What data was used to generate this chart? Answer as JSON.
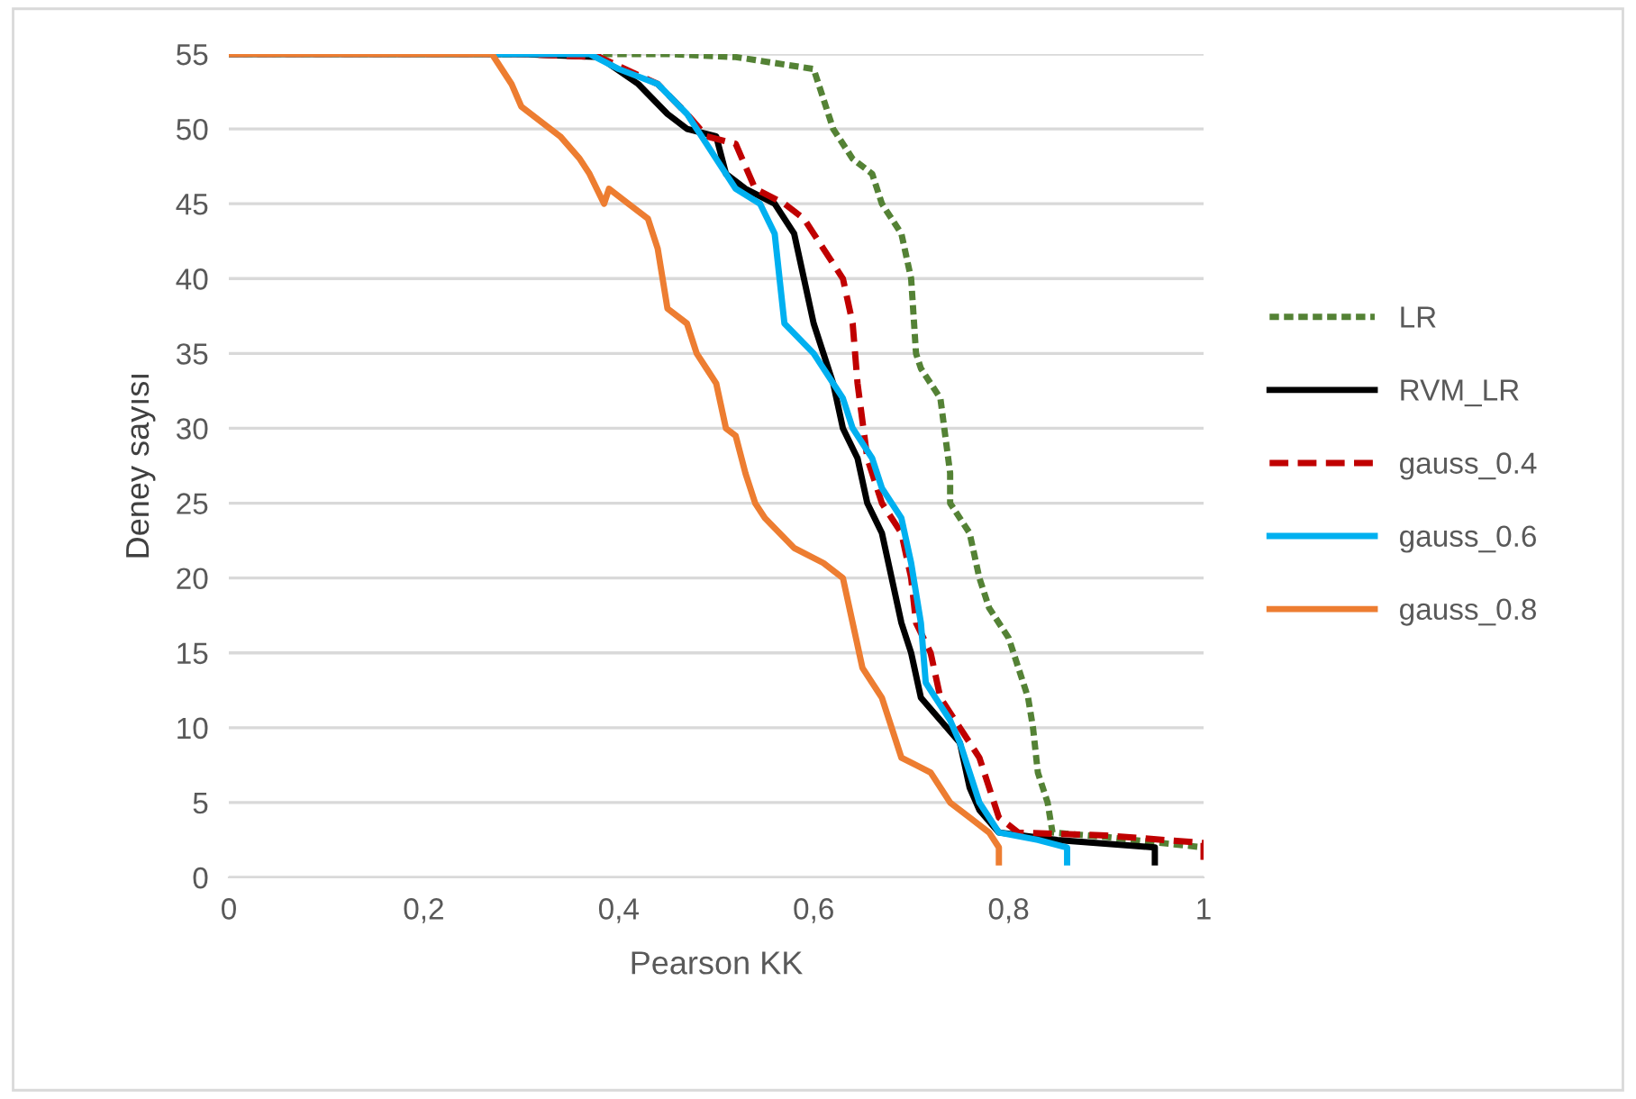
{
  "chart_data": {
    "type": "line",
    "xlabel": "Pearson KK",
    "ylabel": "Deney sayısı",
    "xlim": [
      0,
      1
    ],
    "xticks": [
      {
        "value": 0,
        "label": "0"
      },
      {
        "value": 0.2,
        "label": "0,2"
      },
      {
        "value": 0.4,
        "label": "0,4"
      },
      {
        "value": 0.6,
        "label": "0,6"
      },
      {
        "value": 0.8,
        "label": "0,8"
      },
      {
        "value": 1,
        "label": "1"
      }
    ],
    "ylim": [
      0,
      55
    ],
    "yticks": [
      0,
      5,
      10,
      15,
      20,
      25,
      30,
      35,
      40,
      45,
      50,
      55
    ],
    "grid": "y",
    "legend": "right",
    "marker": "none",
    "series": [
      {
        "name": "LR",
        "color": "#548235",
        "line_style": "dotted",
        "x": [
          0,
          0.3,
          0.45,
          0.52,
          0.6,
          0.62,
          0.64,
          0.66,
          0.67,
          0.69,
          0.7,
          0.705,
          0.71,
          0.73,
          0.74,
          0.74,
          0.76,
          0.77,
          0.78,
          0.8,
          0.81,
          0.82,
          0.825,
          0.83,
          0.84,
          0.845,
          0.9,
          1.0
        ],
        "values": [
          55,
          55,
          55,
          54.8,
          54,
          50,
          48,
          47,
          45,
          43,
          40,
          35,
          34,
          32,
          27,
          25,
          23,
          20,
          18,
          16,
          14,
          12,
          10,
          7,
          5,
          3,
          2.7,
          2
        ]
      },
      {
        "name": "RVM_LR",
        "color": "#000000",
        "line_style": "solid",
        "x": [
          0,
          0.3,
          0.38,
          0.42,
          0.45,
          0.47,
          0.5,
          0.51,
          0.53,
          0.56,
          0.58,
          0.59,
          0.6,
          0.61,
          0.62,
          0.63,
          0.645,
          0.655,
          0.67,
          0.68,
          0.69,
          0.7,
          0.71,
          0.73,
          0.75,
          0.76,
          0.77,
          0.79,
          0.85,
          0.95,
          0.95
        ],
        "values": [
          55,
          55,
          54.8,
          53,
          51,
          50,
          49.5,
          47,
          46,
          45,
          43,
          40,
          37,
          35,
          33,
          30,
          28,
          25,
          23,
          20,
          17,
          15,
          12,
          10.5,
          9,
          6,
          4.5,
          3,
          2.5,
          2,
          1
        ]
      },
      {
        "name": "gauss_0.4",
        "color": "#c00000",
        "line_style": "dashed",
        "x": [
          0,
          0.3,
          0.38,
          0.44,
          0.47,
          0.49,
          0.52,
          0.54,
          0.57,
          0.59,
          0.61,
          0.63,
          0.64,
          0.645,
          0.655,
          0.67,
          0.69,
          0.7,
          0.705,
          0.72,
          0.73,
          0.75,
          0.77,
          0.78,
          0.79,
          0.81,
          0.9,
          1.0,
          1.0
        ],
        "values": [
          55,
          55,
          54.8,
          53,
          51,
          49.5,
          49,
          46,
          45,
          44,
          42,
          40,
          37,
          33,
          28,
          25,
          23,
          20,
          17,
          15,
          12,
          10,
          8,
          6,
          4,
          3,
          2.8,
          2.3,
          1
        ]
      },
      {
        "name": "gauss_0.6",
        "color": "#00b0f0",
        "line_style": "solid",
        "x": [
          0,
          0.3,
          0.37,
          0.4,
          0.44,
          0.47,
          0.48,
          0.49,
          0.5,
          0.52,
          0.545,
          0.56,
          0.565,
          0.57,
          0.6,
          0.63,
          0.64,
          0.66,
          0.67,
          0.69,
          0.7,
          0.71,
          0.715,
          0.725,
          0.74,
          0.75,
          0.76,
          0.77,
          0.79,
          0.83,
          0.86,
          0.86
        ],
        "values": [
          55,
          55,
          55,
          54,
          53,
          51,
          50,
          49,
          48,
          46,
          45,
          43,
          40,
          37,
          35,
          32,
          30,
          28,
          26,
          24,
          21,
          17,
          13,
          12,
          10.5,
          9,
          7,
          5,
          3,
          2.5,
          2,
          1
        ]
      },
      {
        "name": "gauss_0.8",
        "color": "#ed7d31",
        "line_style": "solid",
        "x": [
          0,
          0.25,
          0.27,
          0.29,
          0.3,
          0.34,
          0.36,
          0.37,
          0.385,
          0.39,
          0.41,
          0.43,
          0.44,
          0.45,
          0.47,
          0.48,
          0.49,
          0.5,
          0.51,
          0.52,
          0.53,
          0.54,
          0.55,
          0.58,
          0.61,
          0.63,
          0.64,
          0.65,
          0.67,
          0.68,
          0.69,
          0.72,
          0.74,
          0.76,
          0.78,
          0.79,
          0.79
        ],
        "values": [
          55,
          55,
          55,
          53,
          51.5,
          49.5,
          48,
          47,
          45,
          46,
          45,
          44,
          42,
          38,
          37,
          35,
          34,
          33,
          30,
          29.5,
          27,
          25,
          24,
          22,
          21,
          20,
          17,
          14,
          12,
          10,
          8,
          7,
          5,
          4,
          3,
          2,
          1
        ]
      }
    ]
  }
}
